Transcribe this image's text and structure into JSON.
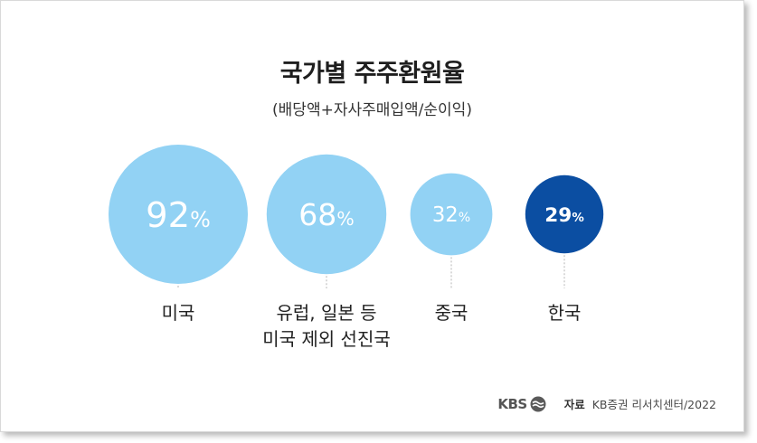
{
  "title": "국가별 주주환원율",
  "subtitle": "(배당액+자사주매입액/순이익)",
  "chart_data": {
    "type": "bubble",
    "categories": [
      "미국",
      "유럽, 일본 등\n미국 제외 선진국",
      "중국",
      "한국"
    ],
    "values": [
      92,
      68,
      32,
      29
    ],
    "value_labels": [
      "92%",
      "68%",
      "32%",
      "29%"
    ],
    "unit": "%",
    "colors": [
      "#92d2f4",
      "#92d2f4",
      "#92d2f4",
      "#0b4ea2"
    ],
    "highlight": "한국"
  },
  "footer": {
    "logo_text": "KBS",
    "source_label": "자료",
    "source_text": "KB증권 리서치센터/2022"
  }
}
